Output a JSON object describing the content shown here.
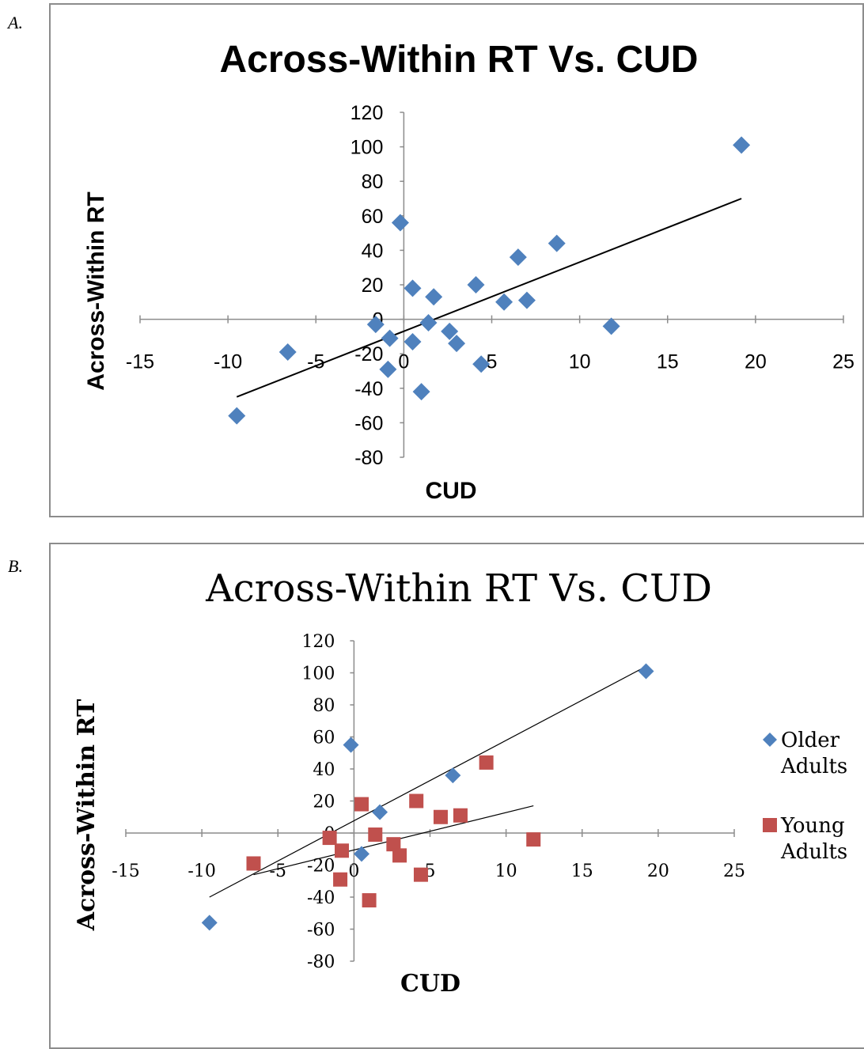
{
  "panels": [
    {
      "letter": "A."
    },
    {
      "letter": "B."
    }
  ],
  "colors": {
    "older": "#4f81bd",
    "young": "#c0504d",
    "axis": "#8c8c8c",
    "trend": "#000000"
  },
  "chart_data": [
    {
      "type": "scatter",
      "title": "Across-Within RT Vs. CUD",
      "xlabel": "CUD",
      "ylabel": "Across-Within RT",
      "xlim": [
        -15,
        25
      ],
      "ylim": [
        -80,
        120
      ],
      "xticks": [
        "-15",
        "-10",
        "-5",
        "0",
        "5",
        "10",
        "15",
        "20",
        "25"
      ],
      "yticks": [
        "120",
        "100",
        "80",
        "60",
        "40",
        "20",
        "0",
        "-20",
        "-40",
        "-60",
        "-80"
      ],
      "marker": "diamond",
      "series": [
        {
          "x": [
            -9.5,
            -6.6,
            -1.6,
            -0.8,
            -0.9,
            -0.2,
            0.5,
            0.5,
            1.0,
            1.4,
            1.7,
            2.6,
            3.0,
            4.1,
            4.4,
            5.7,
            6.5,
            7.0,
            8.7,
            11.8,
            19.2
          ],
          "y": [
            -56,
            -19,
            -3,
            -11,
            -29,
            56,
            18,
            -13,
            -42,
            -2,
            13,
            -7,
            -14,
            20,
            -26,
            10,
            36,
            11,
            44,
            -4,
            101
          ]
        }
      ],
      "trendline": {
        "x": [
          -9.5,
          19.2
        ],
        "y": [
          -45,
          70
        ]
      },
      "grid": false,
      "legend": "none"
    },
    {
      "type": "scatter",
      "title": "Across-Within RT Vs. CUD",
      "xlabel": "CUD",
      "ylabel": "Across-Within RT",
      "xlim": [
        -15,
        25
      ],
      "ylim": [
        -80,
        120
      ],
      "xticks": [
        "-15",
        "-10",
        "-5",
        "0",
        "5",
        "10",
        "15",
        "20",
        "25"
      ],
      "yticks": [
        "120",
        "100",
        "80",
        "60",
        "40",
        "20",
        "0",
        "-20",
        "-40",
        "-60",
        "-80"
      ],
      "series": [
        {
          "name": "Older Adults",
          "marker": "diamond",
          "x": [
            -9.5,
            -0.2,
            0.5,
            1.7,
            6.5,
            19.2
          ],
          "y": [
            -56,
            55,
            -13,
            13,
            36,
            101
          ],
          "trendline": {
            "x": [
              -9.5,
              19.2
            ],
            "y": [
              -40,
              104
            ]
          }
        },
        {
          "name": "Young Adults",
          "marker": "square",
          "x": [
            -6.6,
            -1.6,
            -0.8,
            -0.9,
            0.5,
            1.0,
            1.4,
            2.6,
            3.0,
            4.1,
            4.4,
            5.7,
            7.0,
            8.7,
            11.8
          ],
          "y": [
            -19,
            -3,
            -11,
            -29,
            18,
            -42,
            -1,
            -7,
            -14,
            20,
            -26,
            10,
            11,
            44,
            -4
          ],
          "trendline": {
            "x": [
              -6.6,
              11.8
            ],
            "y": [
              -26,
              17
            ]
          }
        }
      ],
      "grid": false,
      "legend": "right"
    }
  ]
}
